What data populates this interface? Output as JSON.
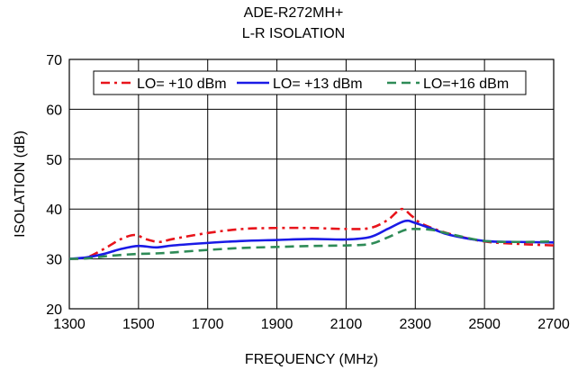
{
  "chart_data": {
    "type": "line",
    "title": "ADE-R272MH+",
    "subtitle": "L-R ISOLATION",
    "xlabel": "FREQUENCY (MHz)",
    "ylabel": "ISOLATION (dB)",
    "xlim": [
      1300,
      2700
    ],
    "ylim": [
      20,
      70
    ],
    "xticks": [
      "1300",
      "1500",
      "1700",
      "1900",
      "2100",
      "2300",
      "2500",
      "2700"
    ],
    "yticks": [
      "20",
      "30",
      "40",
      "50",
      "60",
      "70"
    ],
    "grid": true,
    "legend_position": "top",
    "series": [
      {
        "name": "LO= +10 dBm",
        "color": "#e8141b",
        "dash": "dash",
        "x": [
          1300,
          1350,
          1400,
          1450,
          1490,
          1520,
          1560,
          1600,
          1700,
          1800,
          1900,
          2000,
          2100,
          2170,
          2220,
          2260,
          2290,
          2320,
          2400,
          2500,
          2600,
          2700
        ],
        "y": [
          30,
          30.3,
          32,
          34,
          34.8,
          34,
          33.4,
          34,
          35.2,
          36,
          36.2,
          36.2,
          36,
          36.2,
          37.8,
          40,
          38.6,
          37,
          35,
          33.5,
          33,
          32.7
        ]
      },
      {
        "name": "LO= +13 dBm",
        "color": "#1a1ae6",
        "dash": "solid",
        "x": [
          1300,
          1350,
          1400,
          1450,
          1500,
          1550,
          1600,
          1700,
          1800,
          1900,
          2000,
          2100,
          2170,
          2220,
          2270,
          2300,
          2350,
          2400,
          2500,
          2600,
          2700
        ],
        "y": [
          30,
          30.3,
          31,
          32,
          32.6,
          32.3,
          32.7,
          33.2,
          33.6,
          33.8,
          34,
          33.9,
          34.4,
          36,
          37.6,
          37.2,
          36,
          34.8,
          33.6,
          33.4,
          33.3
        ]
      },
      {
        "name": "LO=+16 dBm",
        "color": "#2e8b57",
        "dash": "dash",
        "x": [
          1300,
          1350,
          1400,
          1450,
          1500,
          1550,
          1600,
          1700,
          1800,
          1900,
          2000,
          2100,
          2170,
          2220,
          2270,
          2300,
          2350,
          2400,
          2500,
          2600,
          2700
        ],
        "y": [
          30,
          30.1,
          30.5,
          30.8,
          31,
          31.1,
          31.3,
          31.8,
          32.2,
          32.4,
          32.6,
          32.7,
          33,
          34.3,
          35.8,
          36,
          35.8,
          35,
          33.6,
          33.4,
          33.5
        ]
      }
    ]
  }
}
